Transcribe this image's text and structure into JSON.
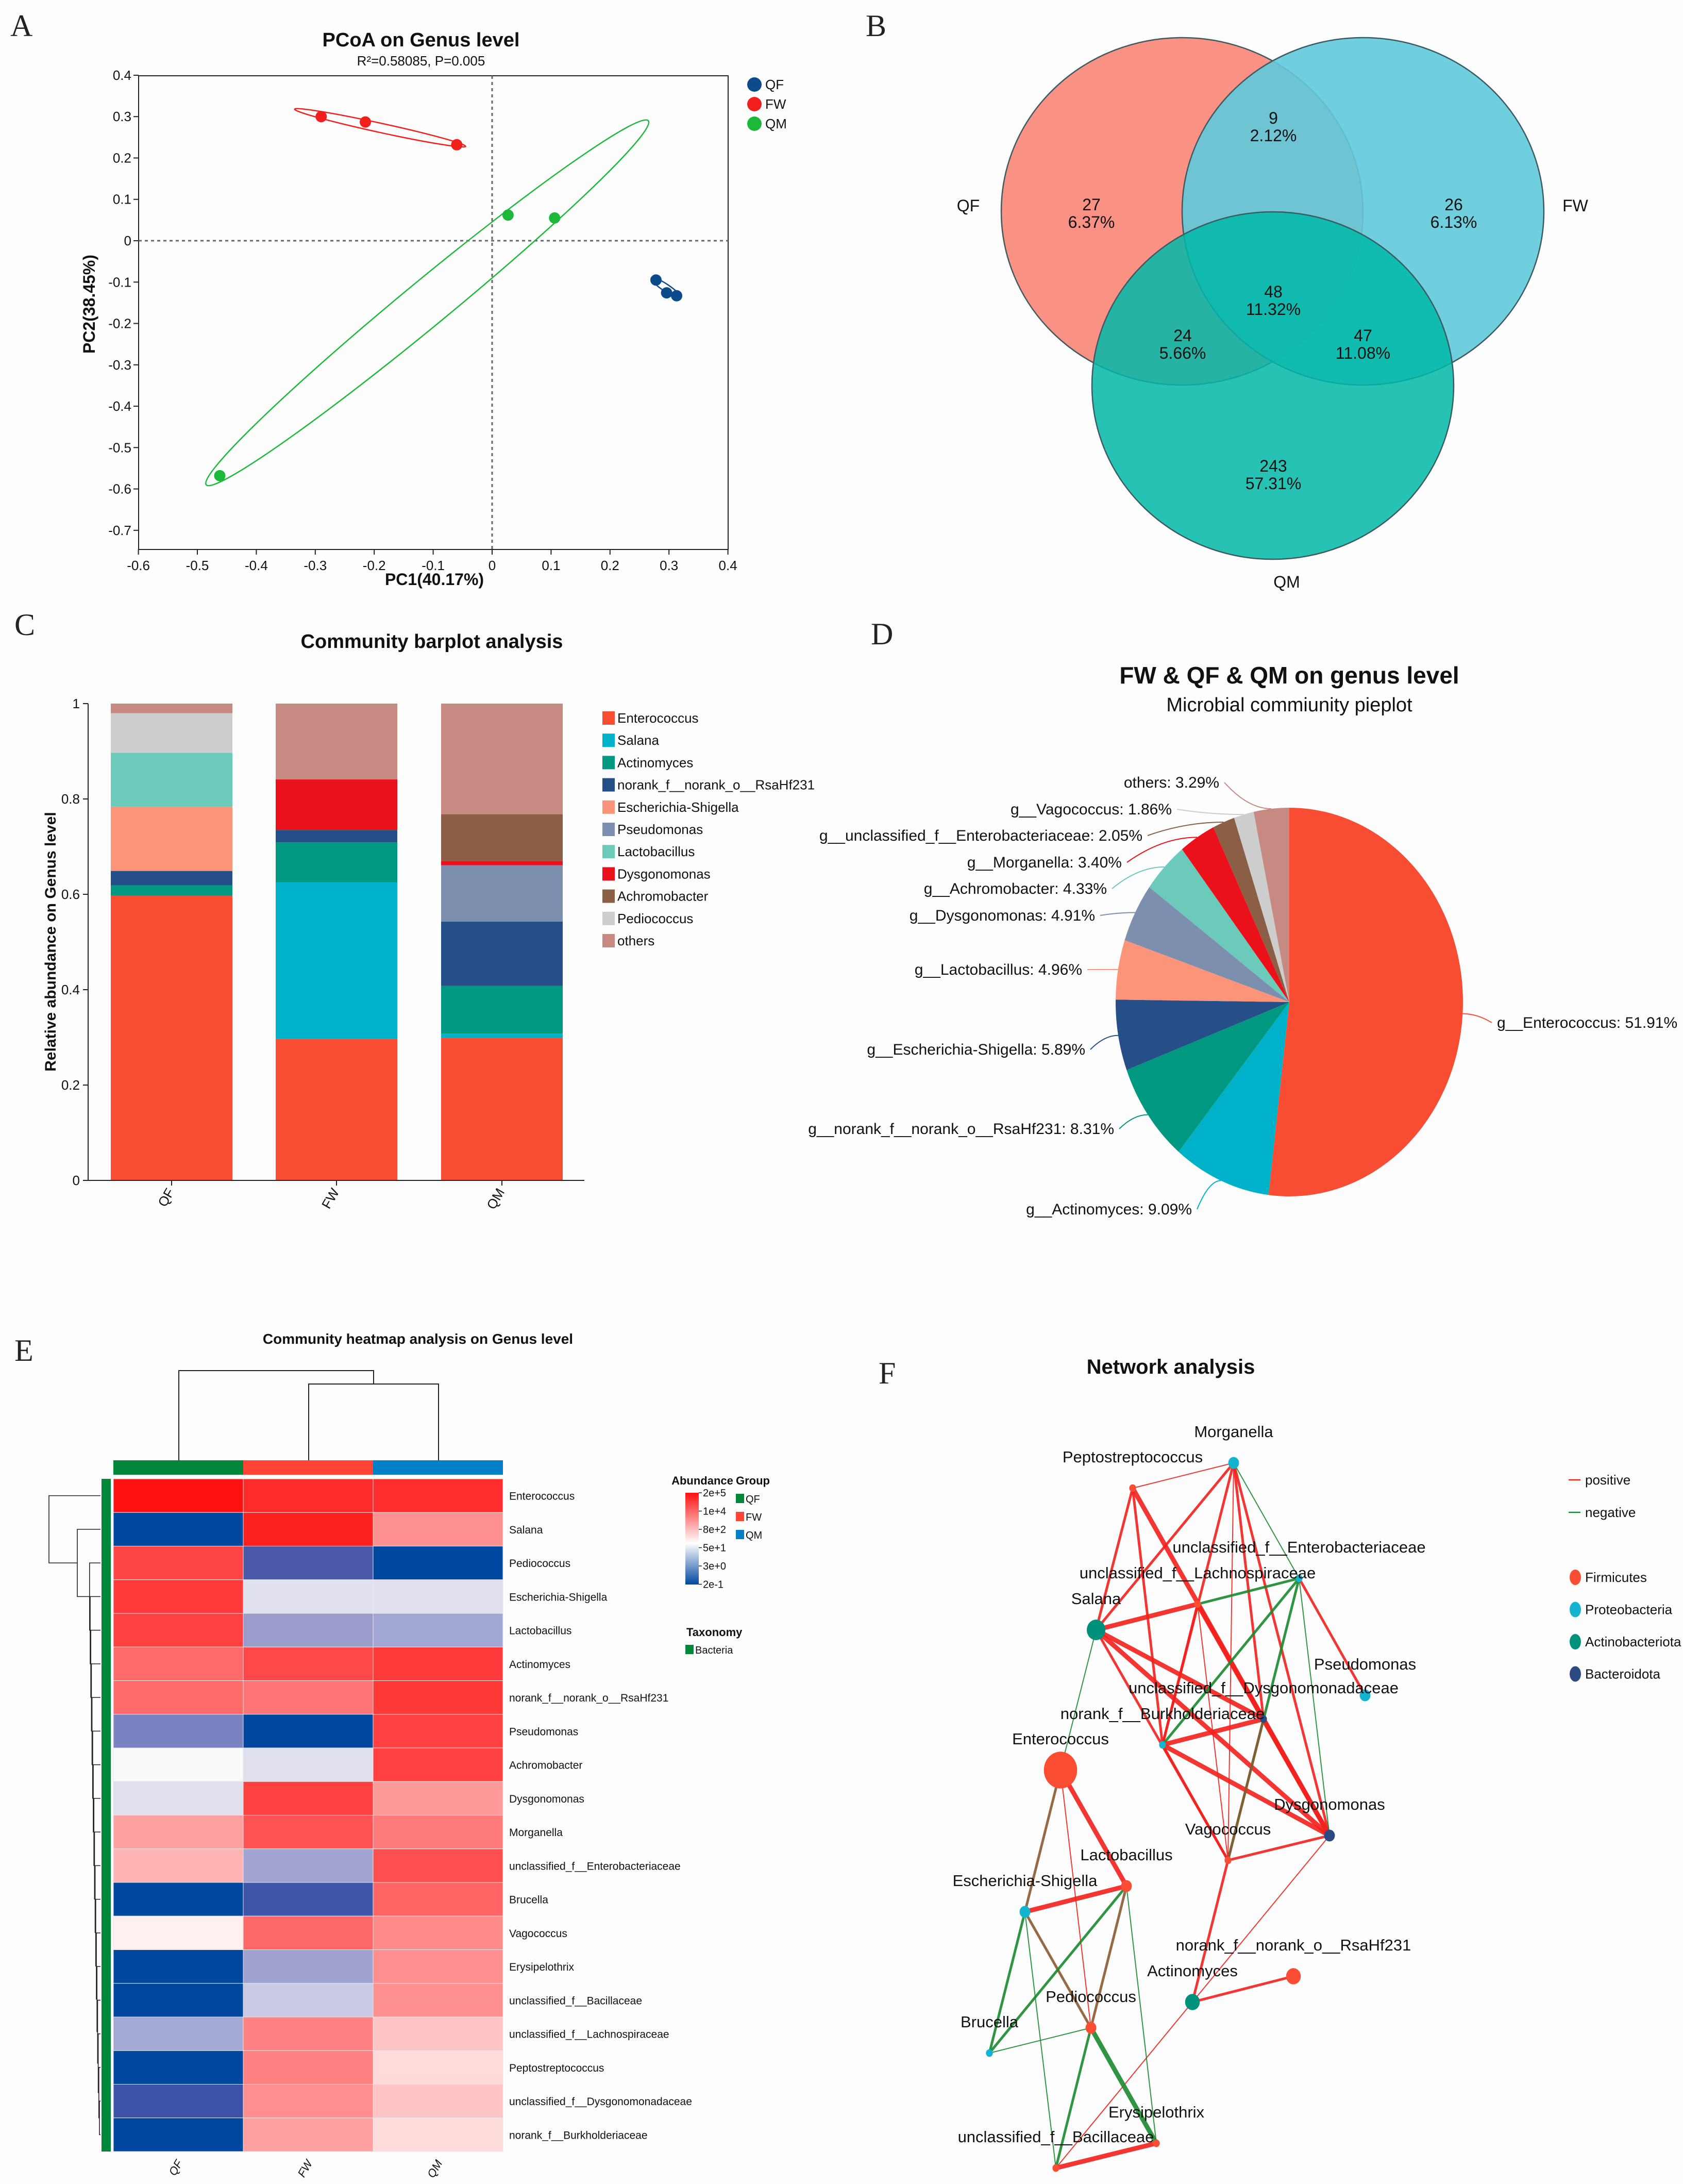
{
  "panels": {
    "A": "A",
    "B": "B",
    "C": "C",
    "D": "D",
    "E": "E",
    "F": "F"
  },
  "chart_data": [
    {
      "id": "pcoa",
      "type": "scatter",
      "title": "PCoA on Genus level",
      "subtitle": "R²=0.58085, P=0.005",
      "xlabel": "PC1(40.17%)",
      "ylabel": "PC2(38.45%)",
      "xlim": [
        -0.6,
        0.4
      ],
      "ylim": [
        -0.745,
        0.4
      ],
      "xticks": [
        "-0.6",
        "-0.5",
        "-0.4",
        "-0.3",
        "-0.2",
        "-0.1",
        "0",
        "0.1",
        "0.2",
        "0.3",
        "0.4"
      ],
      "yticks": [
        "0.4",
        "0.3",
        "0.2",
        "0.1",
        "0",
        "-0.1",
        "-0.2",
        "-0.3",
        "-0.4",
        "-0.5",
        "-0.6",
        "-0.7"
      ],
      "legend": "top-right",
      "series": [
        {
          "name": "QF",
          "color": "#0b4a8b",
          "points": [
            [
              0.278,
              -0.095
            ],
            [
              0.296,
              -0.126
            ],
            [
              0.313,
              -0.133
            ]
          ],
          "ellipse_ends": [
            [
              0.27,
              -0.09
            ],
            [
              0.32,
              -0.138
            ]
          ]
        },
        {
          "name": "FW",
          "color": "#f2201c",
          "points": [
            [
              -0.29,
              0.3
            ],
            [
              -0.215,
              0.287
            ],
            [
              -0.06,
              0.232
            ]
          ],
          "ellipse_ends": [
            [
              -0.335,
              0.318
            ],
            [
              -0.045,
              0.228
            ]
          ]
        },
        {
          "name": "QM",
          "color": "#1db83a",
          "points": [
            [
              0.027,
              0.062
            ],
            [
              0.106,
              0.055
            ],
            [
              -0.462,
              -0.568
            ]
          ],
          "ellipse_ends": [
            [
              -0.485,
              -0.59
            ],
            [
              0.265,
              0.29
            ]
          ]
        }
      ]
    },
    {
      "id": "venn",
      "type": "venn",
      "sets": [
        {
          "name": "QF",
          "color": "#fa8578"
        },
        {
          "name": "FW",
          "color": "#5fcadc"
        },
        {
          "name": "QM",
          "color": "#00b8a8"
        }
      ],
      "regions": [
        {
          "sets": "QF",
          "count": "27",
          "pct": "6.37%"
        },
        {
          "sets": "QF&FW",
          "count": "9",
          "pct": "2.12%"
        },
        {
          "sets": "FW",
          "count": "26",
          "pct": "6.13%"
        },
        {
          "sets": "QF&FW&QM",
          "count": "48",
          "pct": "11.32%"
        },
        {
          "sets": "QF&QM",
          "count": "24",
          "pct": "5.66%"
        },
        {
          "sets": "FW&QM",
          "count": "47",
          "pct": "11.08%"
        },
        {
          "sets": "QM",
          "count": "243",
          "pct": "57.31%"
        }
      ]
    },
    {
      "id": "barplot",
      "type": "bar",
      "stacked": true,
      "title": "Community barplot analysis",
      "ylabel": "Relative abundance on Genus level",
      "xlabel": "",
      "ylim": [
        0,
        1
      ],
      "yticks": [
        "0",
        "0.2",
        "0.4",
        "0.6",
        "0.8",
        "1"
      ],
      "categories": [
        "QF",
        "FW",
        "QM"
      ],
      "legend": "right",
      "series": [
        {
          "name": "Enterococcus",
          "color": "#f84d33",
          "values": [
            0.597,
            0.297,
            0.299
          ]
        },
        {
          "name": "Salana",
          "color": "#00b2c9",
          "values": [
            0,
            0.328,
            0.009
          ]
        },
        {
          "name": "Actinomyces",
          "color": "#009880",
          "values": [
            0.022,
            0.084,
            0.1
          ]
        },
        {
          "name": "norank_f__norank_o__RsaHf231",
          "color": "#254f86",
          "values": [
            0.03,
            0.026,
            0.135
          ]
        },
        {
          "name": "Escherichia-Shigella",
          "color": "#fb9479",
          "values": [
            0.135,
            0,
            0
          ]
        },
        {
          "name": "Pseudomonas",
          "color": "#7d8fae",
          "values": [
            0,
            0,
            0.118
          ]
        },
        {
          "name": "Lactobacillus",
          "color": "#6ccabb",
          "values": [
            0.113,
            0,
            0
          ]
        },
        {
          "name": "Dysgonomonas",
          "color": "#ea111b",
          "values": [
            0,
            0.106,
            0.009
          ]
        },
        {
          "name": "Achromobacter",
          "color": "#8a5f45",
          "values": [
            0,
            0,
            0.098
          ]
        },
        {
          "name": "Pediococcus",
          "color": "#cdcdcd",
          "values": [
            0.083,
            0,
            0
          ]
        },
        {
          "name": "others",
          "color": "#c78a82",
          "values": [
            0.02,
            0.159,
            0.232
          ]
        }
      ]
    },
    {
      "id": "pie",
      "type": "pie",
      "title": "FW & QF & QM on genus level",
      "subtitle": "Microbial commiunity pieplot",
      "slices": [
        {
          "label": "g__Enterococcus: 51.91%",
          "value": 51.91,
          "color": "#f84d33"
        },
        {
          "label": "g__Actinomyces: 9.09%",
          "value": 9.09,
          "color": "#00b2c9"
        },
        {
          "label": "g__norank_f__norank_o__RsaHf231: 8.31%",
          "value": 8.31,
          "color": "#009880"
        },
        {
          "label": "g__Escherichia-Shigella: 5.89%",
          "value": 5.89,
          "color": "#254f86"
        },
        {
          "label": "g__Lactobacillus: 4.96%",
          "value": 4.96,
          "color": "#fb9479"
        },
        {
          "label": "g__Dysgonomonas: 4.91%",
          "value": 4.91,
          "color": "#7d8fae"
        },
        {
          "label": "g__Achromobacter: 4.33%",
          "value": 4.33,
          "color": "#6ccabb"
        },
        {
          "label": "g__Morganella: 3.40%",
          "value": 3.4,
          "color": "#ea111b"
        },
        {
          "label": "g__unclassified_f__Enterobacteriaceae: 2.05%",
          "value": 2.05,
          "color": "#8a5f45"
        },
        {
          "label": "g__Vagococcus: 1.86%",
          "value": 1.86,
          "color": "#cdcdcd"
        },
        {
          "label": "others: 3.29%",
          "value": 3.29,
          "color": "#c78a82"
        }
      ]
    },
    {
      "id": "heatmap",
      "type": "heatmap",
      "title": "Community heatmap analysis on Genus level",
      "columns": [
        "QF",
        "FW",
        "QM"
      ],
      "column_colors": [
        "#00873a",
        "#ff4433",
        "#0080c6"
      ],
      "rows": [
        "Enterococcus",
        "Salana",
        "Pediococcus",
        "Escherichia-Shigella",
        "Lactobacillus",
        "Actinomyces",
        "norank_f__norank_o__RsaHf231",
        "Pseudomonas",
        "Achromobacter",
        "Dysgonomonas",
        "Morganella",
        "unclassified_f__Enterobacteriaceae",
        "Brucella",
        "Vagococcus",
        "Erysipelothrix",
        "unclassified_f__Bacillaceae",
        "unclassified_f__Lachnospiraceae",
        "Peptostreptococcus",
        "unclassified_f__Dysgonomonadaceae",
        "norank_f__Burkholderiaceae"
      ],
      "cell_colors": [
        [
          "#ff1111",
          "#ff2a2a",
          "#ff2d2d"
        ],
        [
          "#0047a0",
          "#ff2020",
          "#ff9090"
        ],
        [
          "#ff4444",
          "#4a5aa8",
          "#0047a0"
        ],
        [
          "#ff3a3a",
          "#e0e0ee",
          "#e0e0ee"
        ],
        [
          "#ff4040",
          "#9a9ccc",
          "#a2a6d2"
        ],
        [
          "#ff6a6a",
          "#ff4848",
          "#ff3a3a"
        ],
        [
          "#ff6a6a",
          "#ff7575",
          "#ff3838"
        ],
        [
          "#7b82c2",
          "#0047a0",
          "#ff4040"
        ],
        [
          "#fafafa",
          "#e0e0ee",
          "#ff4040"
        ],
        [
          "#e0e0ee",
          "#ff4040",
          "#ff9a9a"
        ],
        [
          "#ffa0a0",
          "#ff5252",
          "#ff7a7a"
        ],
        [
          "#ffb3b3",
          "#a2a4d2",
          "#ff5050"
        ],
        [
          "#0047a0",
          "#3e56a8",
          "#ff6565"
        ],
        [
          "#fff0f0",
          "#ff6868",
          "#ff8a8a"
        ],
        [
          "#0047a0",
          "#a0a2d0",
          "#ff8f8f"
        ],
        [
          "#0047a0",
          "#cacae4",
          "#ff9090"
        ],
        [
          "#a4a8d4",
          "#ff8282",
          "#ffc4c4"
        ],
        [
          "#0047a0",
          "#ff8080",
          "#ffdada"
        ],
        [
          "#3c52a8",
          "#ff8f8f",
          "#ffc4c4"
        ],
        [
          "#0047a0",
          "#ffa0a0",
          "#ffdcdc"
        ]
      ],
      "legend": {
        "abundance_title": "Abundance",
        "abundance_ticks": [
          "2e+5",
          "1e+4",
          "8e+2",
          "5e+1",
          "3e+0",
          "2e-1"
        ],
        "group_title": "Group",
        "groups": [
          {
            "name": "QF",
            "color": "#00873a"
          },
          {
            "name": "FW",
            "color": "#ff4433"
          },
          {
            "name": "QM",
            "color": "#0080c6"
          }
        ],
        "taxonomy_title": "Taxonomy",
        "taxonomy": [
          {
            "name": "Bacteria",
            "color": "#00873a"
          }
        ]
      }
    },
    {
      "id": "network",
      "type": "network",
      "title": "Network analysis",
      "edge_legend": [
        {
          "name": "positive",
          "color": "#f2201c"
        },
        {
          "name": "negative",
          "color": "#1a8a2e"
        }
      ],
      "phyla": [
        {
          "name": "Firmicutes",
          "color": "#fa4d33"
        },
        {
          "name": "Proteobacteria",
          "color": "#14b4d0"
        },
        {
          "name": "Actinobacteriota",
          "color": "#00917a"
        },
        {
          "name": "Bacteroidota",
          "color": "#2b4a84"
        }
      ],
      "nodes": [
        {
          "id": "Morganella",
          "label": "Morganella",
          "phylum": 1,
          "size": 2
        },
        {
          "id": "Pepto",
          "label": "Peptostreptococcus",
          "phylum": 0,
          "size": 1
        },
        {
          "id": "uEntero",
          "label": "unclassified_f__Enterobacteriaceae",
          "phylum": 1,
          "size": 1
        },
        {
          "id": "uLachno",
          "label": "unclassified_f__Lachnospiraceae",
          "phylum": 0,
          "size": 1
        },
        {
          "id": "Salana",
          "label": "Salana",
          "phylum": 2,
          "size": 4
        },
        {
          "id": "Pseudomonas",
          "label": "Pseudomonas",
          "phylum": 1,
          "size": 2
        },
        {
          "id": "uDysgono",
          "label": "unclassified_f__Dysgonomonadaceae",
          "phylum": 3,
          "size": 1
        },
        {
          "id": "nBurk",
          "label": "norank_f__Burkholderiaceae",
          "phylum": 1,
          "size": 1
        },
        {
          "id": "Enterococcus",
          "label": "Enterococcus",
          "phylum": 0,
          "size": 7
        },
        {
          "id": "Dysgonomonas",
          "label": "Dysgonomonas",
          "phylum": 3,
          "size": 2
        },
        {
          "id": "Vagococcus",
          "label": "Vagococcus",
          "phylum": 0,
          "size": 1
        },
        {
          "id": "Lactobacillus",
          "label": "Lactobacillus",
          "phylum": 0,
          "size": 2
        },
        {
          "id": "Escherichia",
          "label": "Escherichia-Shigella",
          "phylum": 1,
          "size": 2
        },
        {
          "id": "nRsa",
          "label": "norank_f__norank_o__RsaHf231",
          "phylum": 0,
          "size": 3
        },
        {
          "id": "Actinomyces",
          "label": "Actinomyces",
          "phylum": 2,
          "size": 3
        },
        {
          "id": "Pediococcus",
          "label": "Pediococcus",
          "phylum": 0,
          "size": 2
        },
        {
          "id": "Brucella",
          "label": "Brucella",
          "phylum": 1,
          "size": 1
        },
        {
          "id": "Erysipelothrix",
          "label": "Erysipelothrix",
          "phylum": 0,
          "size": 1
        },
        {
          "id": "Bacillaceae",
          "label": "unclassified_f__Bacillaceae",
          "phylum": 0,
          "size": 1
        }
      ],
      "edges": [
        [
          "Pepto",
          "Morganella",
          "+",
          1
        ],
        [
          "Pepto",
          "Salana",
          "+",
          2
        ],
        [
          "Pepto",
          "nBurk",
          "+",
          2
        ],
        [
          "Pepto",
          "uDysgono",
          "+",
          3
        ],
        [
          "Morganella",
          "Salana",
          "+",
          2
        ],
        [
          "Morganella",
          "uDysgono",
          "+",
          2
        ],
        [
          "Morganella",
          "Vagococcus",
          "+",
          1
        ],
        [
          "Morganella",
          "Dysgonomonas",
          "+",
          2
        ],
        [
          "Morganella",
          "nBurk",
          "+",
          2
        ],
        [
          "Morganella",
          "uEntero",
          "-",
          1
        ],
        [
          "Salana",
          "uLachno",
          "+",
          3
        ],
        [
          "Salana",
          "uDysgono",
          "+",
          3
        ],
        [
          "Salana",
          "Dysgonomonas",
          "+",
          3
        ],
        [
          "Salana",
          "Vagococcus",
          "+",
          2
        ],
        [
          "Salana",
          "Enterococcus",
          "-",
          1
        ],
        [
          "uLachno",
          "uEntero",
          "-",
          2
        ],
        [
          "uLachno",
          "Dysgonomonas",
          "+",
          3
        ],
        [
          "uLachno",
          "nBurk",
          "+",
          2
        ],
        [
          "uLachno",
          "Vagococcus",
          "+",
          1
        ],
        [
          "uEntero",
          "nBurk",
          "-",
          2
        ],
        [
          "uEntero",
          "Vagococcus",
          "-",
          2
        ],
        [
          "uEntero",
          "Dysgonomonas",
          "-",
          1
        ],
        [
          "uEntero",
          "Pseudomonas",
          "+",
          2
        ],
        [
          "nBurk",
          "uDysgono",
          "+",
          3
        ],
        [
          "nBurk",
          "Dysgonomonas",
          "+",
          3
        ],
        [
          "nBurk",
          "Vagococcus",
          "+",
          2
        ],
        [
          "uDysgono",
          "Dysgonomonas",
          "+",
          3
        ],
        [
          "uDysgono",
          "Vagococcus",
          "m",
          2
        ],
        [
          "Dysgonomonas",
          "Vagococcus",
          "+",
          2
        ],
        [
          "Dysgonomonas",
          "Actinomyces",
          "+",
          1
        ],
        [
          "Vagococcus",
          "Actinomyces",
          "+",
          2
        ],
        [
          "Actinomyces",
          "nRsa",
          "+",
          2
        ],
        [
          "Actinomyces",
          "Bacillaceae",
          "+",
          1
        ],
        [
          "Enterococcus",
          "Lactobacillus",
          "+",
          3
        ],
        [
          "Enterococcus",
          "Escherichia",
          "m",
          2
        ],
        [
          "Enterococcus",
          "Pediococcus",
          "+",
          1
        ],
        [
          "Escherichia",
          "Lactobacillus",
          "+",
          3
        ],
        [
          "Escherichia",
          "Pediococcus",
          "m",
          2
        ],
        [
          "Escherichia",
          "Brucella",
          "-",
          2
        ],
        [
          "Escherichia",
          "Bacillaceae",
          "-",
          1
        ],
        [
          "Lactobacillus",
          "Brucella",
          "-",
          2
        ],
        [
          "Lactobacillus",
          "Pediococcus",
          "m",
          2
        ],
        [
          "Lactobacillus",
          "Erysipelothrix",
          "-",
          1
        ],
        [
          "Pediococcus",
          "Brucella",
          "-",
          1
        ],
        [
          "Pediococcus",
          "Bacillaceae",
          "-",
          2
        ],
        [
          "Pediococcus",
          "Erysipelothrix",
          "-",
          3
        ],
        [
          "Bacillaceae",
          "Erysipelothrix",
          "+",
          3
        ]
      ]
    }
  ]
}
